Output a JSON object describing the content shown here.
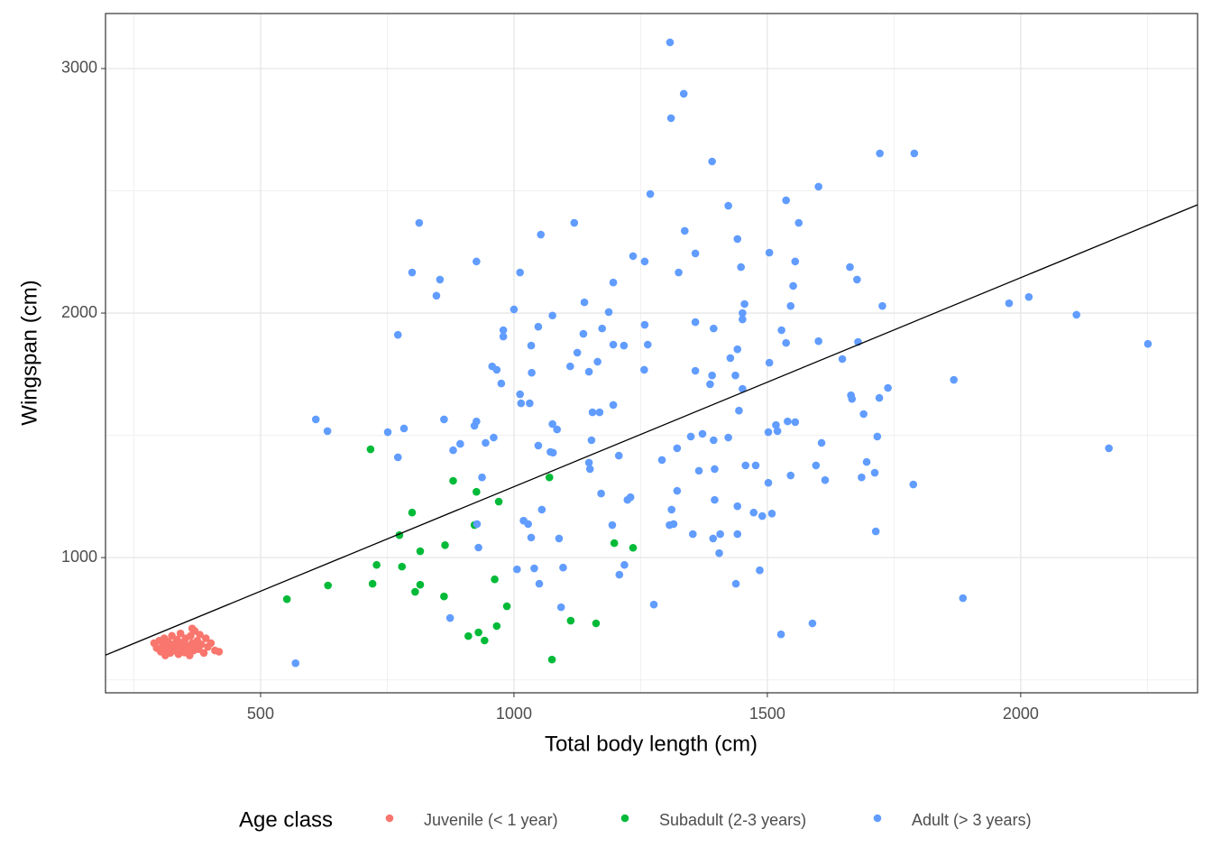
{
  "chart_data": {
    "type": "scatter",
    "x_label": "Total body length (cm)",
    "y_label": "Wingspan (cm)",
    "legend_title": "Age class",
    "legend_position": "bottom",
    "grid": true,
    "xlim": [
      194,
      2349
    ],
    "ylim": [
      447,
      3225
    ],
    "xticks": [
      500,
      1000,
      1500,
      2000
    ],
    "yticks": [
      1000,
      2000,
      3000
    ],
    "x_minor_ticks": [
      250,
      750,
      1250,
      1750,
      2250
    ],
    "y_minor_ticks": [
      500,
      1500,
      2500
    ],
    "trend_line": {
      "color": "#000000",
      "x": [
        194,
        2349
      ],
      "y": [
        601,
        2443
      ]
    },
    "series": [
      {
        "name": "Juvenile (< 1 year)",
        "color": "#F8766D",
        "x": [
          290,
          295,
          300,
          303,
          308,
          310,
          312,
          315,
          318,
          320,
          322,
          325,
          328,
          330,
          332,
          335,
          338,
          340,
          342,
          345,
          348,
          350,
          352,
          355,
          358,
          360,
          362,
          365,
          368,
          370,
          372,
          375,
          378,
          380,
          383,
          388,
          392,
          396,
          402,
          410,
          418,
          365
        ],
        "y": [
          650,
          630,
          660,
          615,
          640,
          670,
          600,
          625,
          655,
          645,
          610,
          680,
          630,
          620,
          650,
          665,
          605,
          640,
          690,
          625,
          655,
          612,
          670,
          640,
          630,
          600,
          680,
          650,
          620,
          700,
          640,
          660,
          625,
          685,
          645,
          610,
          670,
          635,
          650,
          620,
          615,
          710
        ]
      },
      {
        "name": "Subadult (2-3 years)",
        "color": "#00BA38",
        "x": [
          717,
          1070,
          880,
          926,
          970,
          799,
          922,
          774,
          1198,
          1235,
          864,
          815,
          729,
          779,
          962,
          815,
          721,
          633,
          805,
          862,
          552,
          986,
          1112,
          1162,
          966,
          930,
          910,
          942,
          1075
        ],
        "y": [
          1443,
          1328,
          1314,
          1269,
          1229,
          1184,
          1133,
          1092,
          1059,
          1040,
          1051,
          1026,
          970,
          963,
          911,
          889,
          893,
          886,
          860,
          841,
          830,
          801,
          742,
          731,
          720,
          694,
          679,
          661,
          583
        ]
      },
      {
        "name": "Adult (> 3 years)",
        "color": "#619CFF",
        "x": [
          1308,
          1335,
          1310,
          1722,
          1790,
          1391,
          1601,
          1269,
          1537,
          1423,
          813,
          1119,
          1562,
          1337,
          1053,
          1441,
          1358,
          1504,
          1235,
          1258,
          926,
          1555,
          1663,
          1448,
          799,
          1012,
          1325,
          854,
          1677,
          1196,
          1551,
          847,
          2016,
          1139,
          1455,
          1546,
          1727,
          1977,
          1000,
          1187,
          1451,
          2110,
          1076,
          1451,
          1048,
          1358,
          1258,
          1394,
          1174,
          979,
          1528,
          771,
          979,
          1137,
          1601,
          1537,
          1679,
          2251,
          1034,
          1196,
          1217,
          1264,
          1441,
          1125,
          1427,
          1648,
          1165,
          1504,
          1111,
          957,
          966,
          1257,
          1358,
          1148,
          1035,
          1437,
          1391,
          1868,
          975,
          1387,
          1738,
          1451,
          1012,
          1665,
          1667,
          1721,
          1031,
          1014,
          1196,
          1444,
          1690,
          1155,
          1169,
          609,
          862,
          1555,
          1540,
          926,
          632,
          751,
          783,
          922,
          1076,
          1085,
          1517,
          1502,
          1520,
          1372,
          1423,
          1717,
          960,
          1349,
          1153,
          1394,
          1607,
          1048,
          894,
          944,
          880,
          1322,
          1072,
          1077,
          2174,
          771,
          1207,
          1148,
          1292,
          1696,
          1150,
          1457,
          1477,
          1596,
          1365,
          1396,
          1712,
          1546,
          937,
          1686,
          1614,
          1502,
          1788,
          1322,
          1172,
          1230,
          1224,
          1396,
          1055,
          1311,
          1441,
          1473,
          1019,
          1490,
          1028,
          1509,
          927,
          1307,
          1315,
          1194,
          1714,
          1034,
          1089,
          1353,
          1407,
          1393,
          1441,
          930,
          1405,
          1006,
          1040,
          1097,
          1218,
          1208,
          1485,
          1050,
          1438,
          1886,
          1276,
          1093,
          874,
          1589,
          1527,
          569
        ],
        "y": [
          3107,
          2897,
          2797,
          2653,
          2653,
          2620,
          2517,
          2487,
          2461,
          2439,
          2369,
          2369,
          2369,
          2336,
          2321,
          2303,
          2244,
          2247,
          2233,
          2211,
          2211,
          2211,
          2188,
          2188,
          2166,
          2166,
          2166,
          2137,
          2137,
          2125,
          2111,
          2071,
          2066,
          2044,
          2037,
          2029,
          2029,
          2040,
          2015,
          2004,
          2000,
          1993,
          1990,
          1974,
          1944,
          1963,
          1952,
          1937,
          1937,
          1930,
          1930,
          1911,
          1904,
          1915,
          1885,
          1878,
          1882,
          1874,
          1867,
          1871,
          1867,
          1871,
          1852,
          1838,
          1816,
          1812,
          1801,
          1797,
          1782,
          1782,
          1768,
          1768,
          1764,
          1760,
          1756,
          1745,
          1745,
          1727,
          1712,
          1709,
          1694,
          1690,
          1668,
          1664,
          1649,
          1653,
          1631,
          1631,
          1624,
          1601,
          1587,
          1594,
          1594,
          1565,
          1565,
          1554,
          1557,
          1557,
          1517,
          1513,
          1528,
          1539,
          1546,
          1524,
          1542,
          1513,
          1517,
          1506,
          1491,
          1495,
          1491,
          1495,
          1480,
          1480,
          1469,
          1458,
          1465,
          1469,
          1439,
          1447,
          1432,
          1429,
          1447,
          1410,
          1417,
          1388,
          1399,
          1391,
          1362,
          1377,
          1377,
          1377,
          1355,
          1362,
          1347,
          1336,
          1328,
          1328,
          1317,
          1306,
          1299,
          1273,
          1262,
          1247,
          1236,
          1236,
          1196,
          1196,
          1210,
          1184,
          1151,
          1170,
          1137,
          1180,
          1137,
          1133,
          1137,
          1133,
          1107,
          1082,
          1078,
          1096,
          1096,
          1078,
          1096,
          1041,
          1018,
          952,
          956,
          959,
          970,
          930,
          948,
          893,
          893,
          834,
          808,
          797,
          753,
          731,
          686,
          568
        ]
      }
    ]
  }
}
